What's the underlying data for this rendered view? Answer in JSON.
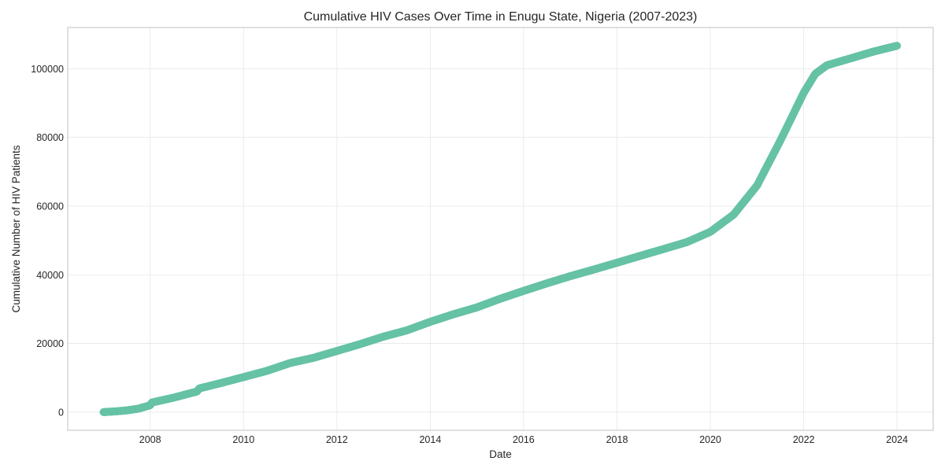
{
  "chart_data": {
    "type": "scatter",
    "title": "Cumulative HIV Cases Over Time in Enugu State, Nigeria (2007-2023)",
    "xlabel": "Date",
    "ylabel": "Cumulative Number of HIV Patients",
    "xlim": [
      "2006-03-27",
      "2024-10-10"
    ],
    "ylim": [
      -5300,
      112000
    ],
    "xticks": [
      "2008",
      "2010",
      "2012",
      "2014",
      "2016",
      "2018",
      "2020",
      "2022",
      "2024"
    ],
    "yticks": [
      "0",
      "20000",
      "40000",
      "60000",
      "80000",
      "100000"
    ],
    "grid": true,
    "series": [
      {
        "color": "#66c2a5",
        "points": [
          [
            "2007-01-01",
            0
          ],
          [
            "2007-04-01",
            200
          ],
          [
            "2007-07-01",
            500
          ],
          [
            "2007-10-01",
            1000
          ],
          [
            "2008-01-01",
            2000
          ],
          [
            "2008-01-15",
            2800
          ],
          [
            "2008-07-01",
            4200
          ],
          [
            "2009-01-01",
            6000
          ],
          [
            "2009-01-20",
            6900
          ],
          [
            "2009-07-01",
            8400
          ],
          [
            "2010-01-01",
            10200
          ],
          [
            "2010-07-01",
            12000
          ],
          [
            "2011-01-01",
            14300
          ],
          [
            "2011-07-01",
            15800
          ],
          [
            "2012-01-01",
            17800
          ],
          [
            "2012-07-01",
            19800
          ],
          [
            "2013-01-01",
            22000
          ],
          [
            "2013-07-01",
            23800
          ],
          [
            "2014-01-01",
            26300
          ],
          [
            "2014-07-01",
            28500
          ],
          [
            "2015-01-01",
            30500
          ],
          [
            "2015-07-01",
            33000
          ],
          [
            "2016-01-01",
            35300
          ],
          [
            "2016-07-01",
            37500
          ],
          [
            "2017-01-01",
            39600
          ],
          [
            "2017-07-01",
            41500
          ],
          [
            "2018-01-01",
            43500
          ],
          [
            "2018-07-01",
            45500
          ],
          [
            "2019-01-01",
            47500
          ],
          [
            "2019-07-01",
            49500
          ],
          [
            "2020-01-01",
            52500
          ],
          [
            "2020-07-01",
            57500
          ],
          [
            "2021-01-01",
            66000
          ],
          [
            "2021-07-01",
            79000
          ],
          [
            "2022-01-01",
            93000
          ],
          [
            "2022-04-01",
            98500
          ],
          [
            "2022-07-01",
            101000
          ],
          [
            "2023-01-01",
            103000
          ],
          [
            "2023-07-01",
            105000
          ],
          [
            "2024-01-01",
            106700
          ]
        ]
      }
    ]
  }
}
